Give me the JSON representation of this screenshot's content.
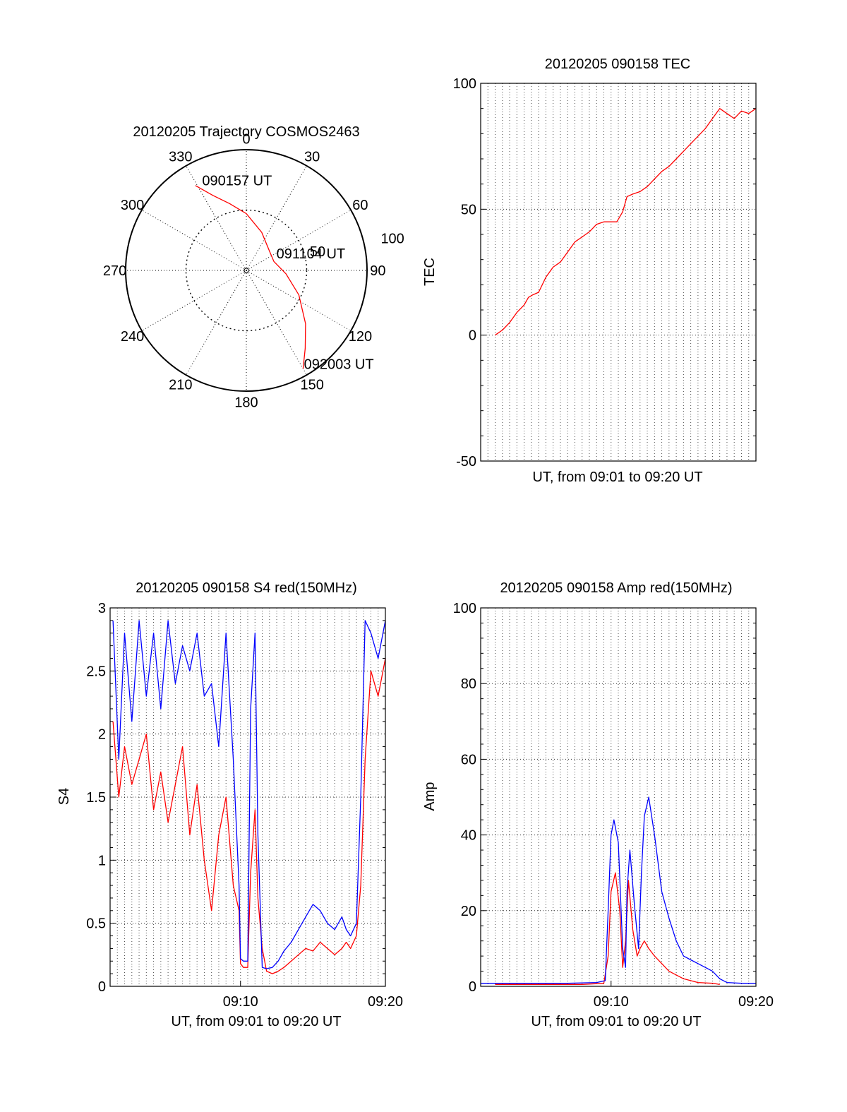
{
  "colors": {
    "red": "#ff0000",
    "blue": "#0000ff",
    "axis": "#000000",
    "grid": "#000000"
  },
  "chart_data": [
    {
      "id": "trajectory",
      "type": "polar",
      "title": "20120205 Trajectory COSMOS2463",
      "azimuth_ticks": [
        0,
        30,
        60,
        90,
        120,
        150,
        180,
        210,
        240,
        270,
        300,
        330
      ],
      "azimuth_labels": [
        "0",
        "30",
        "60",
        "90",
        "120",
        "150",
        "180",
        "210",
        "240",
        "270",
        "300",
        "330"
      ],
      "radial_ticks": [
        50,
        100
      ],
      "radial_labels": [
        "50",
        "100"
      ],
      "radial_max": 100,
      "grid": true,
      "annotations": [
        {
          "text": "090157 UT",
          "az": 331,
          "r": 78
        },
        {
          "text": "091104 UT",
          "az": 72,
          "r": 25
        },
        {
          "text": "092003 UT",
          "az": 151,
          "r": 96
        }
      ],
      "series": [
        {
          "color": "red",
          "points": [
            [
              329,
              82
            ],
            [
              336,
              68
            ],
            [
              346,
              57
            ],
            [
              0,
              47
            ],
            [
              22,
              34
            ],
            [
              50,
              25
            ],
            [
              72,
              24
            ],
            [
              95,
              33
            ],
            [
              115,
              48
            ],
            [
              132,
              66
            ],
            [
              143,
              81
            ],
            [
              150,
              94
            ]
          ]
        }
      ]
    },
    {
      "id": "tec",
      "type": "line",
      "title": "20120205 090158 TEC",
      "xlabel": "UT, from 09:01 to 09:20 UT",
      "ylabel": "TEC",
      "xlim": [
        1,
        20
      ],
      "ylim": [
        -50,
        100
      ],
      "yticks": [
        -50,
        0,
        50,
        100
      ],
      "ytick_labels": [
        "-50",
        "0",
        "50",
        "100"
      ],
      "xticks": [],
      "xtick_labels": [],
      "grid": true,
      "series": [
        {
          "color": "red",
          "x": [
            2.0,
            2.5,
            3.0,
            3.5,
            4.0,
            4.3,
            4.6,
            5.0,
            5.5,
            6.0,
            6.5,
            7.0,
            7.5,
            8.0,
            8.5,
            9.0,
            9.5,
            10.0,
            10.4,
            10.8,
            11.1,
            11.5,
            12.0,
            12.5,
            13.0,
            13.5,
            14.0,
            14.5,
            15.0,
            15.5,
            16.0,
            16.5,
            17.0,
            17.5,
            18.0,
            18.5,
            19.0,
            19.5,
            20.0
          ],
          "y": [
            0,
            2,
            5,
            9,
            12,
            15,
            16,
            17,
            23,
            27,
            29,
            33,
            37,
            39,
            41,
            44,
            45,
            45,
            45,
            49,
            55,
            56,
            57,
            59,
            62,
            65,
            67,
            70,
            73,
            76,
            79,
            82,
            86,
            90,
            88,
            86,
            89,
            88,
            90
          ]
        }
      ]
    },
    {
      "id": "s4",
      "type": "line",
      "title": "20120205 090158 S4 red(150MHz)",
      "xlabel": "UT, from 09:01 to 09:20 UT",
      "ylabel": "S4",
      "xlim": [
        1,
        20
      ],
      "ylim": [
        0,
        3
      ],
      "yticks": [
        0,
        0.5,
        1,
        1.5,
        2,
        2.5,
        3
      ],
      "ytick_labels": [
        "0",
        "0.5",
        "1",
        "1.5",
        "2",
        "2.5",
        "3"
      ],
      "xticks": [
        10,
        20
      ],
      "xtick_labels": [
        "09:10",
        "09:20"
      ],
      "grid": true,
      "series": [
        {
          "color": "red",
          "x": [
            1.2,
            1.6,
            2.0,
            2.5,
            3.0,
            3.5,
            4.0,
            4.5,
            5.0,
            5.5,
            6.0,
            6.5,
            7.0,
            7.5,
            8.0,
            8.5,
            9.0,
            9.5,
            9.9,
            10.0,
            10.2,
            10.5,
            10.7,
            11.0,
            11.2,
            11.5,
            11.8,
            12.2,
            12.6,
            13.0,
            13.5,
            14.0,
            14.5,
            15.0,
            15.5,
            16.0,
            16.5,
            17.0,
            17.3,
            17.6,
            18.0,
            18.3,
            18.6,
            19.0,
            19.5,
            20.0
          ],
          "y": [
            2.1,
            1.5,
            1.9,
            1.6,
            1.8,
            2.0,
            1.4,
            1.7,
            1.3,
            1.6,
            1.9,
            1.2,
            1.6,
            1.0,
            0.6,
            1.2,
            1.5,
            0.8,
            0.6,
            0.18,
            0.15,
            0.15,
            0.9,
            1.4,
            0.7,
            0.3,
            0.12,
            0.1,
            0.12,
            0.15,
            0.2,
            0.25,
            0.3,
            0.28,
            0.35,
            0.3,
            0.25,
            0.3,
            0.35,
            0.3,
            0.4,
            0.8,
            1.8,
            2.5,
            2.3,
            2.6
          ]
        },
        {
          "color": "blue",
          "x": [
            1.2,
            1.6,
            2.0,
            2.5,
            3.0,
            3.5,
            4.0,
            4.5,
            5.0,
            5.5,
            6.0,
            6.5,
            7.0,
            7.5,
            8.0,
            8.5,
            9.0,
            9.5,
            9.9,
            10.0,
            10.2,
            10.5,
            10.7,
            11.0,
            11.2,
            11.5,
            11.8,
            12.2,
            12.6,
            13.0,
            13.5,
            14.0,
            14.5,
            15.0,
            15.5,
            16.0,
            16.5,
            17.0,
            17.3,
            17.6,
            18.0,
            18.3,
            18.6,
            19.0,
            19.5,
            20.0
          ],
          "y": [
            2.9,
            1.8,
            2.8,
            2.1,
            2.9,
            2.3,
            2.8,
            2.2,
            2.9,
            2.4,
            2.7,
            2.5,
            2.8,
            2.3,
            2.4,
            1.9,
            2.8,
            1.8,
            0.8,
            0.22,
            0.2,
            0.2,
            2.2,
            2.8,
            1.2,
            0.15,
            0.14,
            0.15,
            0.2,
            0.28,
            0.35,
            0.45,
            0.55,
            0.65,
            0.6,
            0.5,
            0.45,
            0.55,
            0.45,
            0.4,
            0.5,
            1.5,
            2.9,
            2.8,
            2.6,
            2.9
          ]
        }
      ]
    },
    {
      "id": "amp",
      "type": "line",
      "title": "20120205 090158 Amp red(150MHz)",
      "xlabel": "UT, from 09:01 to 09:20 UT",
      "ylabel": "Amp",
      "xlim": [
        1,
        20
      ],
      "ylim": [
        0,
        100
      ],
      "yticks": [
        0,
        20,
        40,
        60,
        80,
        100
      ],
      "ytick_labels": [
        "0",
        "20",
        "40",
        "60",
        "80",
        "100"
      ],
      "xticks": [
        10,
        20
      ],
      "xtick_labels": [
        "09:10",
        "09:20"
      ],
      "grid": true,
      "series": [
        {
          "color": "red",
          "x": [
            2.0,
            5.0,
            8.0,
            9.5,
            9.8,
            10.0,
            10.3,
            10.6,
            10.8,
            11.0,
            11.2,
            11.5,
            11.8,
            12.0,
            12.3,
            12.6,
            13.0,
            13.5,
            14.0,
            15.0,
            16.0,
            17.0,
            17.5
          ],
          "y": [
            0.5,
            0.5,
            0.5,
            0.8,
            8,
            25,
            30,
            20,
            5,
            12,
            28,
            15,
            8,
            10,
            12,
            10,
            8,
            6,
            4,
            2,
            1,
            0.8,
            0.5
          ]
        },
        {
          "color": "blue",
          "x": [
            1.0,
            3.0,
            5.0,
            7.0,
            9.0,
            9.6,
            9.8,
            10.0,
            10.2,
            10.5,
            10.8,
            11.0,
            11.1,
            11.3,
            11.6,
            11.9,
            12.1,
            12.3,
            12.6,
            13.0,
            13.5,
            14.0,
            14.5,
            15.0,
            15.5,
            16.0,
            16.5,
            17.0,
            17.5,
            18.0,
            19.0,
            20.0
          ],
          "y": [
            0.8,
            0.8,
            0.8,
            0.8,
            1.0,
            1.5,
            20,
            40,
            44,
            38,
            10,
            5,
            25,
            36,
            22,
            10,
            30,
            45,
            50,
            40,
            25,
            18,
            12,
            8,
            7,
            6,
            5,
            4,
            2,
            1,
            0.8,
            0.8
          ]
        }
      ]
    }
  ]
}
